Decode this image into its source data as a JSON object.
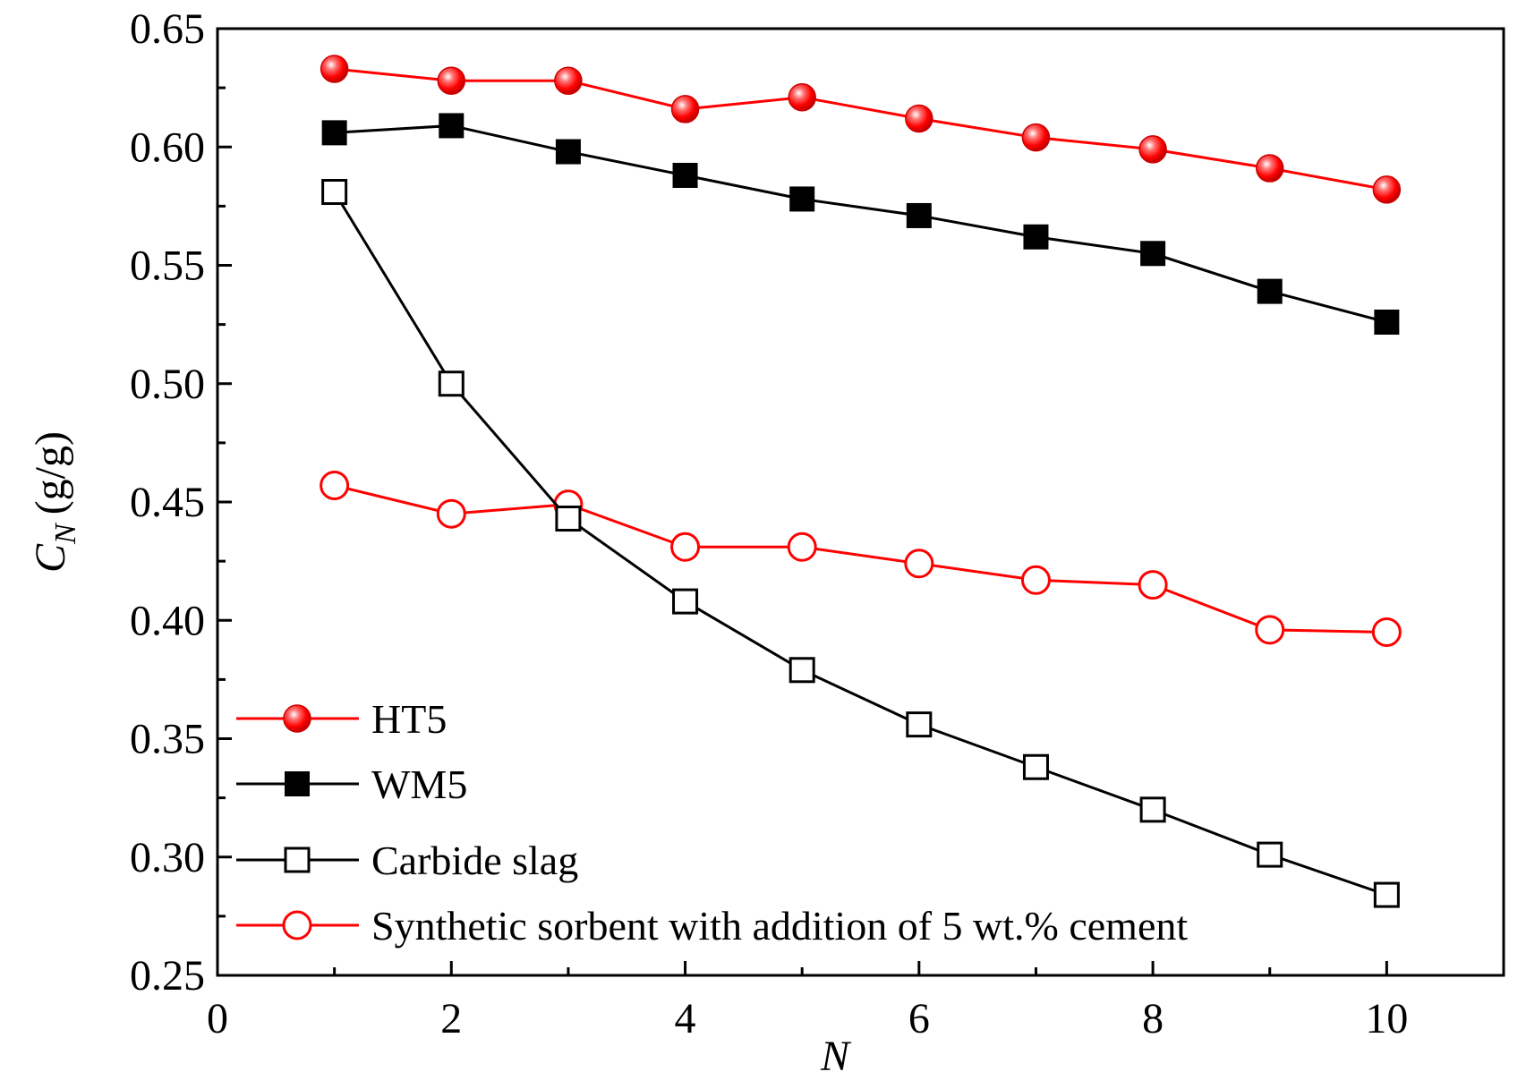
{
  "chart_data": {
    "type": "line",
    "title": "",
    "xlabel": "N",
    "ylabel_main": "C",
    "ylabel_sub": "N",
    "ylabel_unit": "(g/g)",
    "xlim": [
      0,
      11
    ],
    "ylim": [
      0.25,
      0.65
    ],
    "xticks": [
      0,
      2,
      4,
      6,
      8,
      10
    ],
    "xtick_labels": [
      "0",
      "2",
      "4",
      "6",
      "8",
      "10"
    ],
    "yticks": [
      0.25,
      0.3,
      0.35,
      0.4,
      0.45,
      0.5,
      0.55,
      0.6,
      0.65
    ],
    "ytick_labels": [
      "0.25",
      "0.30",
      "0.35",
      "0.40",
      "0.45",
      "0.50",
      "0.55",
      "0.60",
      "0.65"
    ],
    "grid": false,
    "legend_position": "bottom-left",
    "x": [
      1,
      2,
      3,
      4,
      5,
      6,
      7,
      8,
      9,
      10
    ],
    "series": [
      {
        "name": "HT5",
        "color": "#ff0000",
        "marker": "filled-circle",
        "values": [
          0.633,
          0.628,
          0.628,
          0.616,
          0.621,
          0.612,
          0.604,
          0.599,
          0.591,
          0.582
        ]
      },
      {
        "name": "WM5",
        "color": "#000000",
        "marker": "filled-square",
        "values": [
          0.606,
          0.609,
          0.598,
          0.588,
          0.578,
          0.571,
          0.562,
          0.555,
          0.539,
          0.526
        ]
      },
      {
        "name": "Carbide slag",
        "color": "#000000",
        "marker": "open-square",
        "values": [
          0.581,
          0.5,
          0.443,
          0.408,
          0.379,
          0.356,
          0.338,
          0.32,
          0.301,
          0.284
        ]
      },
      {
        "name": "Synthetic sorbent with addition of 5 wt.% cement",
        "color": "#ff0000",
        "marker": "open-circle",
        "values": [
          0.457,
          0.445,
          0.449,
          0.431,
          0.431,
          0.424,
          0.417,
          0.415,
          0.396,
          0.395
        ]
      }
    ]
  }
}
